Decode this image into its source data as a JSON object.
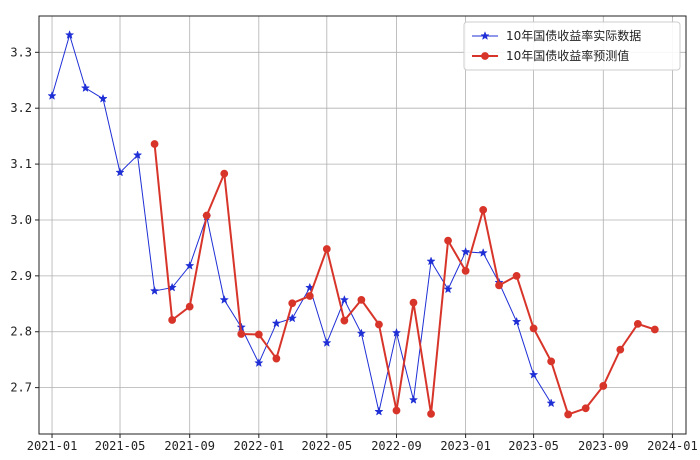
{
  "chart_data": {
    "type": "line",
    "title": "",
    "xlabel": "",
    "ylabel": "",
    "x_ticks": [
      "2021-01",
      "2021-05",
      "2021-09",
      "2022-01",
      "2022-05",
      "2022-09",
      "2023-01",
      "2023-05",
      "2023-09",
      "2024-01"
    ],
    "y_ticks": [
      2.7,
      2.8,
      2.9,
      3.0,
      3.1,
      3.2,
      3.3
    ],
    "xlim": [
      "2020-12-09",
      "2024-01-25"
    ],
    "ylim": [
      2.617,
      3.365
    ],
    "grid": true,
    "legend_position": "top-right",
    "series": [
      {
        "name": "10年国债收益率实际数据",
        "color": "#1f2fd6",
        "marker": "star",
        "points": [
          [
            "2021-01-01",
            3.222
          ],
          [
            "2021-02-01",
            3.331
          ],
          [
            "2021-03-01",
            3.236
          ],
          [
            "2021-04-01",
            3.217
          ],
          [
            "2021-05-01",
            3.085
          ],
          [
            "2021-06-01",
            3.116
          ],
          [
            "2021-07-01",
            2.873
          ],
          [
            "2021-08-01",
            2.879
          ],
          [
            "2021-09-01",
            2.918
          ],
          [
            "2021-10-01",
            3.006
          ],
          [
            "2021-11-01",
            2.857
          ],
          [
            "2021-12-01",
            2.808
          ],
          [
            "2022-01-01",
            2.744
          ],
          [
            "2022-02-01",
            2.815
          ],
          [
            "2022-03-01",
            2.824
          ],
          [
            "2022-04-01",
            2.879
          ],
          [
            "2022-05-01",
            2.78
          ],
          [
            "2022-06-01",
            2.857
          ],
          [
            "2022-07-01",
            2.797
          ],
          [
            "2022-08-01",
            2.657
          ],
          [
            "2022-09-01",
            2.798
          ],
          [
            "2022-10-01",
            2.678
          ],
          [
            "2022-11-01",
            2.926
          ],
          [
            "2022-12-01",
            2.876
          ],
          [
            "2023-01-01",
            2.943
          ],
          [
            "2023-02-01",
            2.941
          ],
          [
            "2023-03-01",
            2.888
          ],
          [
            "2023-04-01",
            2.818
          ],
          [
            "2023-05-01",
            2.723
          ],
          [
            "2023-06-01",
            2.672
          ]
        ]
      },
      {
        "name": "10年国债收益率预测值",
        "color": "#d8352a",
        "marker": "circle",
        "points": [
          [
            "2021-07-01",
            3.136
          ],
          [
            "2021-08-01",
            2.821
          ],
          [
            "2021-09-01",
            2.845
          ],
          [
            "2021-10-01",
            3.008
          ],
          [
            "2021-11-01",
            3.083
          ],
          [
            "2021-12-01",
            2.796
          ],
          [
            "2022-01-01",
            2.795
          ],
          [
            "2022-02-01",
            2.752
          ],
          [
            "2022-03-01",
            2.851
          ],
          [
            "2022-04-01",
            2.864
          ],
          [
            "2022-05-01",
            2.948
          ],
          [
            "2022-06-01",
            2.82
          ],
          [
            "2022-07-01",
            2.857
          ],
          [
            "2022-08-01",
            2.813
          ],
          [
            "2022-09-01",
            2.659
          ],
          [
            "2022-10-01",
            2.852
          ],
          [
            "2022-11-01",
            2.653
          ],
          [
            "2022-12-01",
            2.963
          ],
          [
            "2023-01-01",
            2.909
          ],
          [
            "2023-02-01",
            3.018
          ],
          [
            "2023-03-01",
            2.883
          ],
          [
            "2023-04-01",
            2.9
          ],
          [
            "2023-05-01",
            2.806
          ],
          [
            "2023-06-01",
            2.747
          ],
          [
            "2023-07-01",
            2.652
          ],
          [
            "2023-08-01",
            2.663
          ],
          [
            "2023-09-01",
            2.703
          ],
          [
            "2023-10-01",
            2.768
          ],
          [
            "2023-11-01",
            2.814
          ],
          [
            "2023-12-01",
            2.804
          ]
        ]
      }
    ]
  }
}
